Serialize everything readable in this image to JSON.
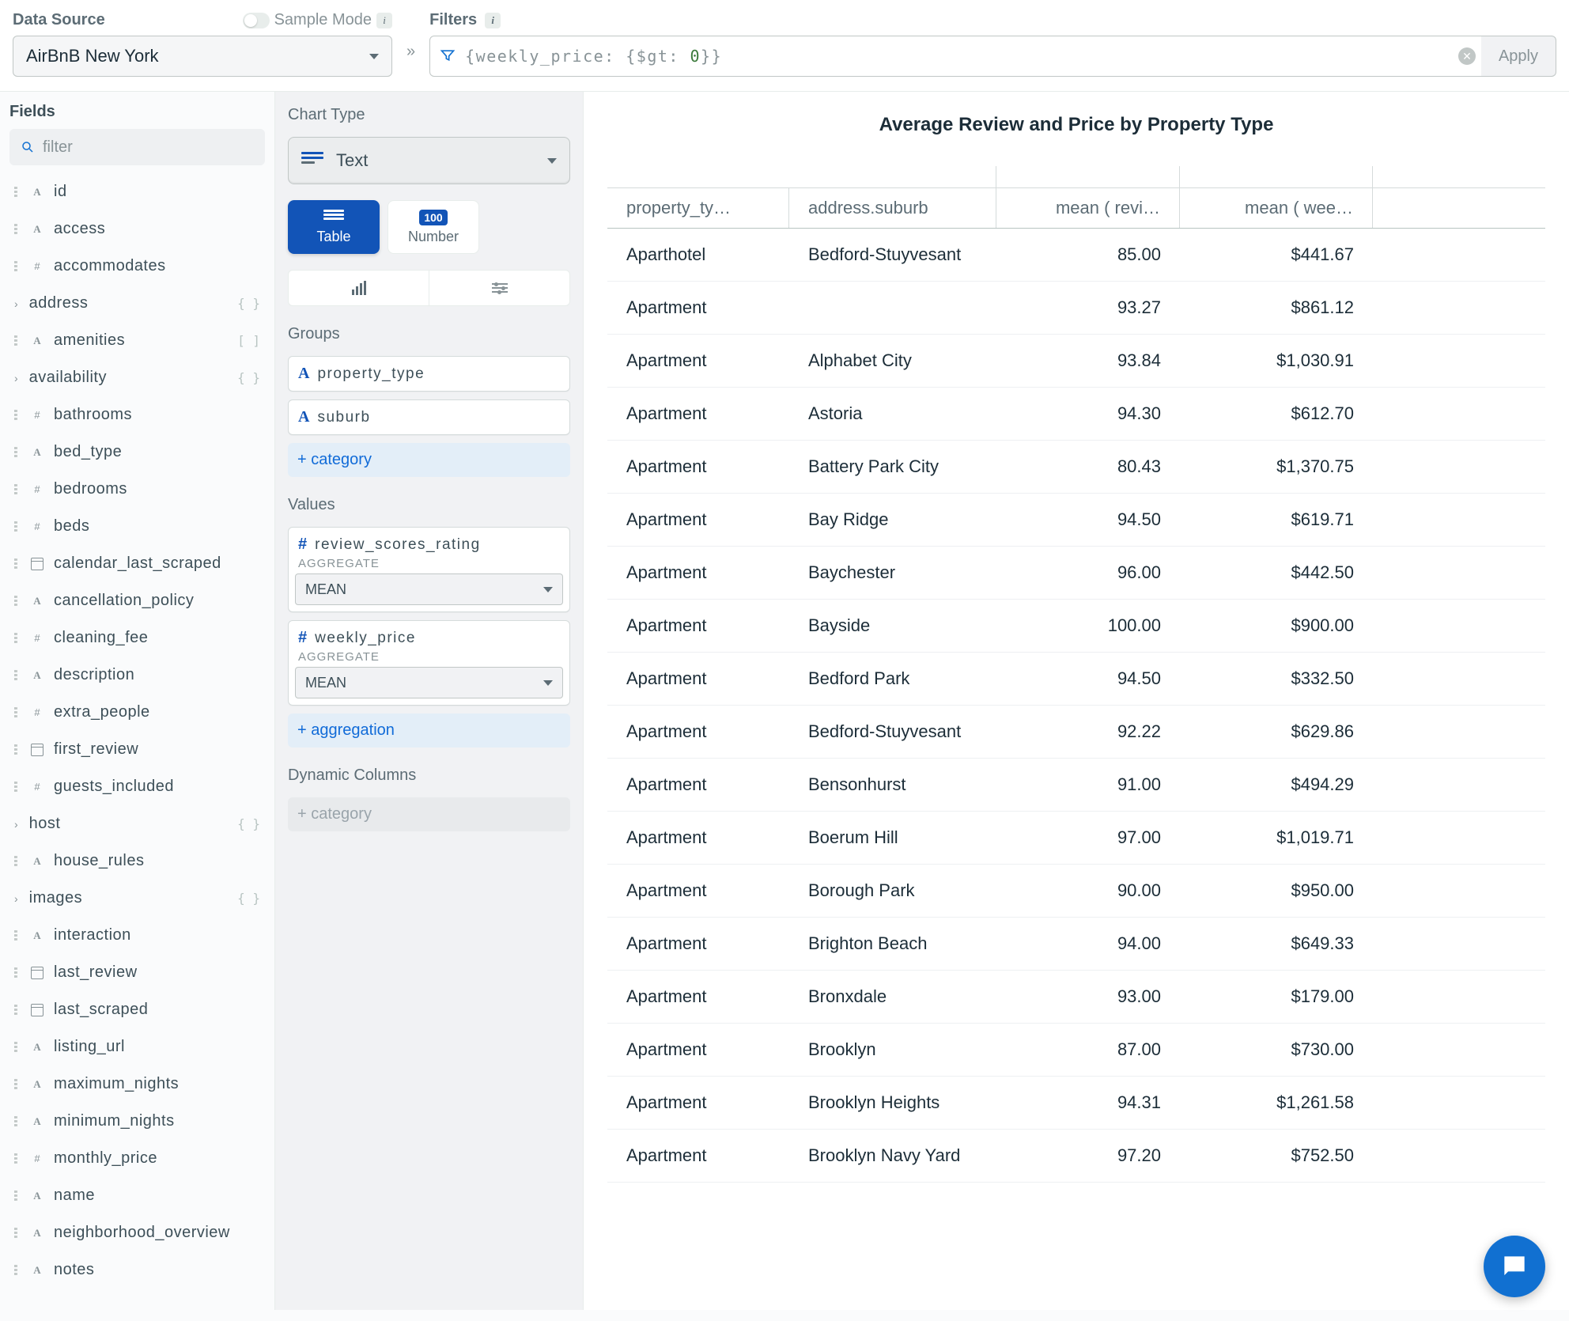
{
  "topbar": {
    "data_source_label": "Data Source",
    "sample_mode_label": "Sample Mode",
    "data_source_value": "AirBnB New York",
    "filters_label": "Filters",
    "filter_prefix": "{weekly_price: {$gt: ",
    "filter_num": "0",
    "filter_suffix": "}}",
    "apply_label": "Apply"
  },
  "fields": {
    "title": "Fields",
    "search_placeholder": "filter",
    "items": [
      {
        "type": "A",
        "name": "id"
      },
      {
        "type": "A",
        "name": "access"
      },
      {
        "type": "#",
        "name": "accommodates"
      },
      {
        "type": "exp",
        "name": "address",
        "suffix": "{ }"
      },
      {
        "type": "A",
        "name": "amenities",
        "suffix": "[ ]"
      },
      {
        "type": "exp",
        "name": "availability",
        "suffix": "{ }"
      },
      {
        "type": "#",
        "name": "bathrooms"
      },
      {
        "type": "A",
        "name": "bed_type"
      },
      {
        "type": "#",
        "name": "bedrooms"
      },
      {
        "type": "#",
        "name": "beds"
      },
      {
        "type": "cal",
        "name": "calendar_last_scraped"
      },
      {
        "type": "A",
        "name": "cancellation_policy"
      },
      {
        "type": "#",
        "name": "cleaning_fee"
      },
      {
        "type": "A",
        "name": "description"
      },
      {
        "type": "#",
        "name": "extra_people"
      },
      {
        "type": "cal",
        "name": "first_review"
      },
      {
        "type": "#",
        "name": "guests_included"
      },
      {
        "type": "exp",
        "name": "host",
        "suffix": "{ }"
      },
      {
        "type": "A",
        "name": "house_rules"
      },
      {
        "type": "exp",
        "name": "images",
        "suffix": "{ }"
      },
      {
        "type": "A",
        "name": "interaction"
      },
      {
        "type": "cal",
        "name": "last_review"
      },
      {
        "type": "cal",
        "name": "last_scraped"
      },
      {
        "type": "A",
        "name": "listing_url"
      },
      {
        "type": "A",
        "name": "maximum_nights"
      },
      {
        "type": "A",
        "name": "minimum_nights"
      },
      {
        "type": "#",
        "name": "monthly_price"
      },
      {
        "type": "A",
        "name": "name"
      },
      {
        "type": "A",
        "name": "neighborhood_overview"
      },
      {
        "type": "A",
        "name": "notes"
      }
    ]
  },
  "config": {
    "chart_type_label": "Chart Type",
    "chart_type_value": "Text",
    "tab_table": "Table",
    "tab_number": "Number",
    "badge_100": "100",
    "groups_label": "Groups",
    "group1": "property_type",
    "group2": "suburb",
    "add_category": "+ category",
    "values_label": "Values",
    "value1": "review_scores_rating",
    "value2": "weekly_price",
    "aggregate_label": "AGGREGATE",
    "aggregate_value": "MEAN",
    "add_aggregation": "+ aggregation",
    "dynamic_label": "Dynamic Columns",
    "add_category_disabled": "+ category"
  },
  "result": {
    "title": "Average Review and Price by Property Type",
    "columns": [
      "property_ty…",
      "address.suburb",
      "mean ( revi…",
      "mean ( wee…"
    ],
    "rows": [
      [
        "Aparthotel",
        "Bedford-Stuyvesant",
        "85.00",
        "$441.67"
      ],
      [
        "Apartment",
        "",
        "93.27",
        "$861.12"
      ],
      [
        "Apartment",
        "Alphabet City",
        "93.84",
        "$1,030.91"
      ],
      [
        "Apartment",
        "Astoria",
        "94.30",
        "$612.70"
      ],
      [
        "Apartment",
        "Battery Park City",
        "80.43",
        "$1,370.75"
      ],
      [
        "Apartment",
        "Bay Ridge",
        "94.50",
        "$619.71"
      ],
      [
        "Apartment",
        "Baychester",
        "96.00",
        "$442.50"
      ],
      [
        "Apartment",
        "Bayside",
        "100.00",
        "$900.00"
      ],
      [
        "Apartment",
        "Bedford Park",
        "94.50",
        "$332.50"
      ],
      [
        "Apartment",
        "Bedford-Stuyvesant",
        "92.22",
        "$629.86"
      ],
      [
        "Apartment",
        "Bensonhurst",
        "91.00",
        "$494.29"
      ],
      [
        "Apartment",
        "Boerum Hill",
        "97.00",
        "$1,019.71"
      ],
      [
        "Apartment",
        "Borough Park",
        "90.00",
        "$950.00"
      ],
      [
        "Apartment",
        "Brighton Beach",
        "94.00",
        "$649.33"
      ],
      [
        "Apartment",
        "Bronxdale",
        "93.00",
        "$179.00"
      ],
      [
        "Apartment",
        "Brooklyn",
        "87.00",
        "$730.00"
      ],
      [
        "Apartment",
        "Brooklyn Heights",
        "94.31",
        "$1,261.58"
      ],
      [
        "Apartment",
        "Brooklyn Navy Yard",
        "97.20",
        "$752.50"
      ]
    ]
  },
  "colors": {
    "accent": "#1254b7",
    "link": "#116bd8",
    "fab": "#1170d1",
    "text": "#3d4f58",
    "muted": "#889397",
    "border": "#d5dbdb"
  }
}
